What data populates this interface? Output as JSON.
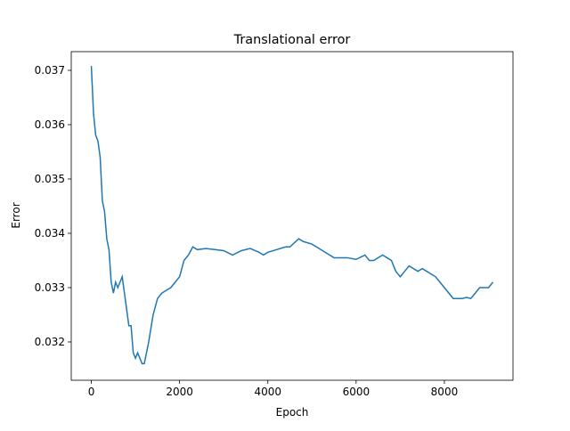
{
  "chart_data": {
    "type": "line",
    "title": "Translational error",
    "x_label": "Epoch",
    "y_label": "Error",
    "x": [
      0,
      50,
      100,
      150,
      200,
      250,
      300,
      350,
      400,
      450,
      500,
      550,
      600,
      650,
      700,
      750,
      800,
      850,
      900,
      950,
      1000,
      1050,
      1100,
      1150,
      1200,
      1250,
      1300,
      1400,
      1500,
      1600,
      1700,
      1800,
      1900,
      2000,
      2100,
      2200,
      2300,
      2400,
      2600,
      2800,
      3000,
      3200,
      3400,
      3600,
      3800,
      3900,
      4000,
      4200,
      4400,
      4500,
      4700,
      4800,
      5000,
      5200,
      5400,
      5500,
      5800,
      6000,
      6200,
      6300,
      6400,
      6600,
      6700,
      6800,
      6900,
      7000,
      7100,
      7200,
      7400,
      7500,
      7600,
      7800,
      8000,
      8200,
      8400,
      8500,
      8600,
      8700,
      8800,
      9000,
      9100
    ],
    "series": [
      {
        "name": "Translational error",
        "color": "#1f77b4",
        "values": [
          0.03708,
          0.0362,
          0.0358,
          0.0357,
          0.0354,
          0.0346,
          0.0344,
          0.0339,
          0.0337,
          0.0331,
          0.0329,
          0.0331,
          0.033,
          0.0331,
          0.0332,
          0.0329,
          0.0326,
          0.0323,
          0.0323,
          0.0318,
          0.0317,
          0.0318,
          0.0317,
          0.0316,
          0.0316,
          0.0318,
          0.032,
          0.0325,
          0.0328,
          0.0329,
          0.03295,
          0.033,
          0.0331,
          0.0332,
          0.0335,
          0.0336,
          0.03375,
          0.0337,
          0.03372,
          0.0337,
          0.03368,
          0.0336,
          0.03368,
          0.03372,
          0.03365,
          0.0336,
          0.03365,
          0.0337,
          0.03375,
          0.03375,
          0.0339,
          0.03385,
          0.0338,
          0.0337,
          0.0336,
          0.03355,
          0.03355,
          0.03352,
          0.0336,
          0.0335,
          0.0335,
          0.0336,
          0.03355,
          0.0335,
          0.0333,
          0.0332,
          0.0333,
          0.0334,
          0.0333,
          0.03335,
          0.0333,
          0.0332,
          0.033,
          0.0328,
          0.0328,
          0.03282,
          0.0328,
          0.0329,
          0.033,
          0.033,
          0.0331
        ]
      }
    ],
    "xlim": [
      -455,
      9555
    ],
    "ylim": [
      0.031295,
      0.037344
    ],
    "xticks": [
      0,
      2000,
      4000,
      6000,
      8000
    ],
    "yticks": [
      0.032,
      0.033,
      0.034,
      0.035,
      0.036,
      0.037
    ]
  }
}
